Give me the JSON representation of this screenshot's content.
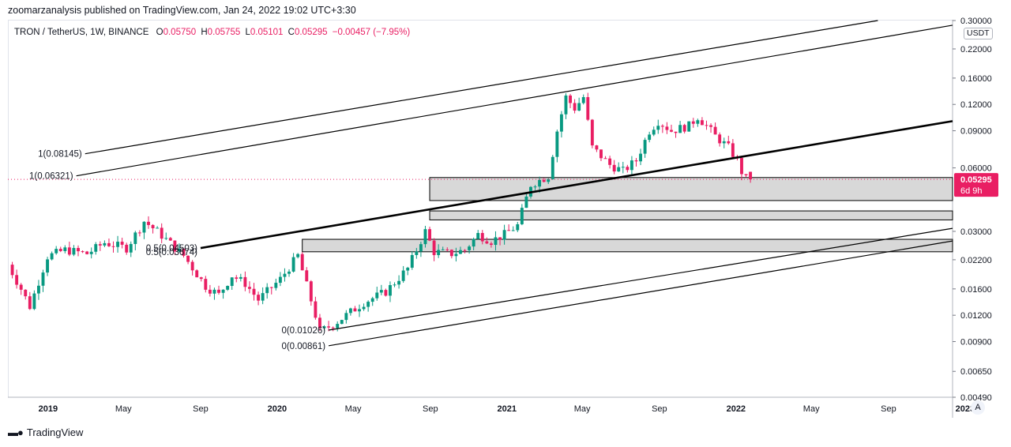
{
  "header": {
    "published": "zoomarzanalysis published on TradingView.com, Jan 24, 2022 19:02 UTC+3:30"
  },
  "legend": {
    "symbol": "TRON / TetherUS, 1W, BINANCE",
    "open_label": "O",
    "open": "0.05750",
    "high_label": "H",
    "high": "0.05755",
    "low_label": "L",
    "low": "0.05101",
    "close_label": "C",
    "close": "0.05295",
    "change": "−0.00457 (−7.95%)"
  },
  "price_scale": {
    "unit": "USDT",
    "last_price": "0.05295",
    "countdown": "6d 9h",
    "auto_button": "A"
  },
  "footer": {
    "brand": "TradingView"
  },
  "colors": {
    "up": "#089981",
    "down": "#e91e63",
    "zone_fill": "#d1d1d1",
    "line": "#000000",
    "price_badge": "#e91e63"
  },
  "chart_data": {
    "type": "candlestick",
    "title": "TRON / TetherUS, 1W, BINANCE",
    "y_scale": "log",
    "ylim": [
      0.0049,
      0.3
    ],
    "y_ticks": [
      {
        "value": 0.3,
        "label": "0.30000"
      },
      {
        "value": 0.22,
        "label": "0.22000"
      },
      {
        "value": 0.16,
        "label": "0.16000"
      },
      {
        "value": 0.12,
        "label": "0.12000"
      },
      {
        "value": 0.09,
        "label": "0.09000"
      },
      {
        "value": 0.06,
        "label": "0.06000"
      },
      {
        "value": 0.03,
        "label": "0.03000"
      },
      {
        "value": 0.022,
        "label": "0.02200"
      },
      {
        "value": 0.016,
        "label": "0.01600"
      },
      {
        "value": 0.012,
        "label": "0.01200"
      },
      {
        "value": 0.009,
        "label": "0.00900"
      },
      {
        "value": 0.0065,
        "label": "0.00650"
      },
      {
        "value": 0.0049,
        "label": "0.00490"
      }
    ],
    "xlim": [
      "2018-10-29",
      "2022-12-12"
    ],
    "x_ticks": [
      {
        "date": "2019-01-01",
        "label": "2019",
        "bold": true
      },
      {
        "date": "2019-05-01",
        "label": "May",
        "bold": false
      },
      {
        "date": "2019-09-01",
        "label": "Sep",
        "bold": false
      },
      {
        "date": "2020-01-01",
        "label": "2020",
        "bold": true
      },
      {
        "date": "2020-05-01",
        "label": "May",
        "bold": false
      },
      {
        "date": "2020-09-01",
        "label": "Sep",
        "bold": false
      },
      {
        "date": "2021-01-01",
        "label": "2021",
        "bold": true
      },
      {
        "date": "2021-05-01",
        "label": "May",
        "bold": false
      },
      {
        "date": "2021-09-01",
        "label": "Sep",
        "bold": false
      },
      {
        "date": "2022-01-01",
        "label": "2022",
        "bold": true
      },
      {
        "date": "2022-05-01",
        "label": "May",
        "bold": false
      },
      {
        "date": "2022-09-01",
        "label": "Sep",
        "bold": false
      },
      {
        "date": "2023-01-01",
        "label": "2023",
        "bold": true
      }
    ],
    "anchor_points": [
      [
        "2018-10-29",
        0.0228
      ],
      [
        "2018-11-26",
        0.016
      ],
      [
        "2018-12-10",
        0.0132
      ],
      [
        "2019-01-07",
        0.0228
      ],
      [
        "2019-02-04",
        0.0245
      ],
      [
        "2019-03-11",
        0.0235
      ],
      [
        "2019-04-08",
        0.0265
      ],
      [
        "2019-05-13",
        0.025
      ],
      [
        "2019-06-10",
        0.0335
      ],
      [
        "2019-07-01",
        0.03
      ],
      [
        "2019-08-12",
        0.023
      ],
      [
        "2019-09-16",
        0.0165
      ],
      [
        "2019-10-07",
        0.015
      ],
      [
        "2019-10-28",
        0.0185
      ],
      [
        "2019-11-18",
        0.017
      ],
      [
        "2019-12-09",
        0.0142
      ],
      [
        "2020-01-13",
        0.0178
      ],
      [
        "2020-02-10",
        0.023
      ],
      [
        "2020-03-09",
        0.012
      ],
      [
        "2020-03-16",
        0.01
      ],
      [
        "2020-04-13",
        0.0112
      ],
      [
        "2020-05-25",
        0.0138
      ],
      [
        "2020-06-29",
        0.0155
      ],
      [
        "2020-08-03",
        0.02
      ],
      [
        "2020-08-31",
        0.03
      ],
      [
        "2020-09-14",
        0.024
      ],
      [
        "2020-10-12",
        0.0235
      ],
      [
        "2020-11-02",
        0.0245
      ],
      [
        "2020-11-23",
        0.029
      ],
      [
        "2020-12-14",
        0.027
      ],
      [
        "2021-01-04",
        0.029
      ],
      [
        "2021-01-25",
        0.032
      ],
      [
        "2021-02-15",
        0.05
      ],
      [
        "2021-03-15",
        0.055
      ],
      [
        "2021-03-29",
        0.09
      ],
      [
        "2021-04-12",
        0.13
      ],
      [
        "2021-04-26",
        0.115
      ],
      [
        "2021-05-10",
        0.13
      ],
      [
        "2021-05-24",
        0.075
      ],
      [
        "2021-06-21",
        0.062
      ],
      [
        "2021-07-12",
        0.058
      ],
      [
        "2021-08-02",
        0.065
      ],
      [
        "2021-08-23",
        0.09
      ],
      [
        "2021-09-06",
        0.1
      ],
      [
        "2021-09-27",
        0.09
      ],
      [
        "2021-10-25",
        0.095
      ],
      [
        "2021-11-08",
        0.105
      ],
      [
        "2021-11-22",
        0.095
      ],
      [
        "2021-12-06",
        0.085
      ],
      [
        "2021-12-27",
        0.075
      ],
      [
        "2022-01-10",
        0.065
      ],
      [
        "2022-01-17",
        0.0575
      ],
      [
        "2022-01-24",
        0.05295
      ]
    ],
    "last_candle": {
      "date": "2022-01-24",
      "open": 0.0575,
      "high": 0.05755,
      "low": 0.05101,
      "close": 0.05295
    },
    "zones": [
      {
        "from": "2020-08-31",
        "low": 0.042,
        "high": 0.054
      },
      {
        "from": "2020-08-31",
        "low": 0.034,
        "high": 0.0375
      },
      {
        "from": "2020-02-10",
        "low": 0.024,
        "high": 0.0275
      }
    ],
    "trend_lines": [
      {
        "from": [
          "2019-03-01",
          0.07
        ],
        "to": [
          "2022-08-15",
          0.3
        ],
        "width": 1.2
      },
      {
        "from": [
          "2019-02-15",
          0.055
        ],
        "to": [
          "2022-12-12",
          0.285
        ],
        "width": 1.2
      },
      {
        "from": [
          "2019-09-01",
          0.025
        ],
        "to": [
          "2022-12-12",
          0.1
        ],
        "width": 2.6
      },
      {
        "from": [
          "2020-03-23",
          0.0102
        ],
        "to": [
          "2022-12-12",
          0.031
        ],
        "width": 1.2
      },
      {
        "from": [
          "2020-03-23",
          0.0086
        ],
        "to": [
          "2022-12-12",
          0.027
        ],
        "width": 1.2
      }
    ],
    "labels": [
      {
        "text": "1(0.08145)",
        "date": "2019-03-01",
        "value": 0.07
      },
      {
        "text": "1(0.06321)",
        "date": "2019-02-15",
        "value": 0.055
      },
      {
        "text": "0.5(0.04503)",
        "date": "2019-09-01",
        "value": 0.025
      },
      {
        "text": "0.5(0.03674)",
        "date": "2019-09-01",
        "value": 0.024
      },
      {
        "text": "0(0.01026)",
        "date": "2020-03-23",
        "value": 0.0102
      },
      {
        "text": "0(0.00861)",
        "date": "2020-03-23",
        "value": 0.0086
      }
    ]
  }
}
